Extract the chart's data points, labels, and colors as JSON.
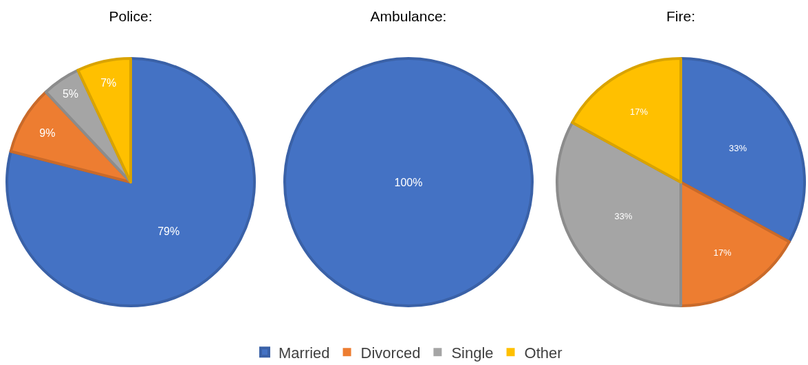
{
  "chart_data": [
    {
      "type": "pie",
      "title": "Police:",
      "categories": [
        null,
        null,
        null,
        null
      ],
      "values": [
        79,
        9,
        5,
        7
      ],
      "colors": [
        "#4472c4",
        "#ed7d31",
        "#a5a5a5",
        "#ffc000"
      ],
      "value_labels": [
        "79%",
        "9%",
        "5%",
        "7%"
      ],
      "legend": false
    },
    {
      "type": "pie",
      "title": "Ambulance:",
      "categories": [
        "Married",
        "Divorced",
        "Single",
        "Other"
      ],
      "values": [
        100,
        0,
        0,
        0
      ],
      "colors": [
        "#4472c4",
        "#ed7d31",
        "#a5a5a5",
        "#ffc000"
      ],
      "value_labels": [
        "100%",
        null,
        null,
        null
      ],
      "legend": "bottom"
    },
    {
      "type": "pie",
      "title": "Fire:",
      "categories": [
        null,
        null,
        null,
        null
      ],
      "values": [
        33,
        17,
        33,
        17
      ],
      "colors": [
        "#4472c4",
        "#ed7d31",
        "#a5a5a5",
        "#ffc000"
      ],
      "value_labels": [
        "33%",
        "17%",
        "33%",
        "17%"
      ],
      "legend": false
    }
  ]
}
